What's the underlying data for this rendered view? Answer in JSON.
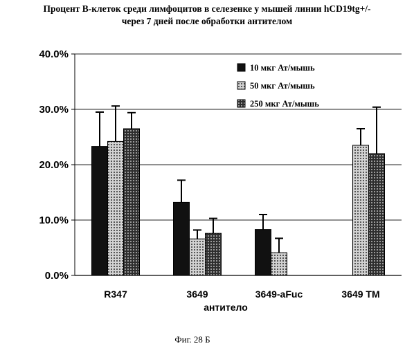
{
  "figure": {
    "title_line1": "Процент В-клеток среди лимфоцитов в селезенке у мышей линии hCD19tg+/-",
    "title_line2": "через 7 дней после обработки антителом",
    "caption": "Фиг. 28 Б"
  },
  "chart_data": {
    "type": "bar",
    "title": "Процент В-клеток среди лимфоцитов в селезенке у мышей линии hCD19tg+/- через 7 дней после обработки антителом",
    "xlabel": "антитело",
    "ylabel": "",
    "categories": [
      "R347",
      "3649",
      "3649-aFuc",
      "3649 TM"
    ],
    "ylim": [
      0,
      40
    ],
    "yticks": [
      0,
      10,
      20,
      30,
      40
    ],
    "ytick_labels": [
      "0.0%",
      "10.0%",
      "20.0%",
      "30.0%",
      "40.0%"
    ],
    "grid": true,
    "legend_position": "top-right",
    "series": [
      {
        "name": "10 мкг Ат/мышь",
        "color": "#111111",
        "pattern": "solid",
        "values": [
          23.3,
          13.2,
          8.3,
          null
        ],
        "errors": [
          6.2,
          4.0,
          2.7,
          null
        ]
      },
      {
        "name": "50 мкг Ат/мышь",
        "color": "#9a9a9a",
        "pattern": "dotted-light",
        "values": [
          24.2,
          6.6,
          4.1,
          23.5
        ],
        "errors": [
          6.4,
          1.6,
          2.6,
          3.0
        ]
      },
      {
        "name": "250 мкг Ат/мышь",
        "color": "#444444",
        "pattern": "dotted-dark",
        "values": [
          26.5,
          7.6,
          null,
          22.0
        ],
        "errors": [
          2.9,
          2.7,
          null,
          8.4
        ]
      }
    ]
  }
}
